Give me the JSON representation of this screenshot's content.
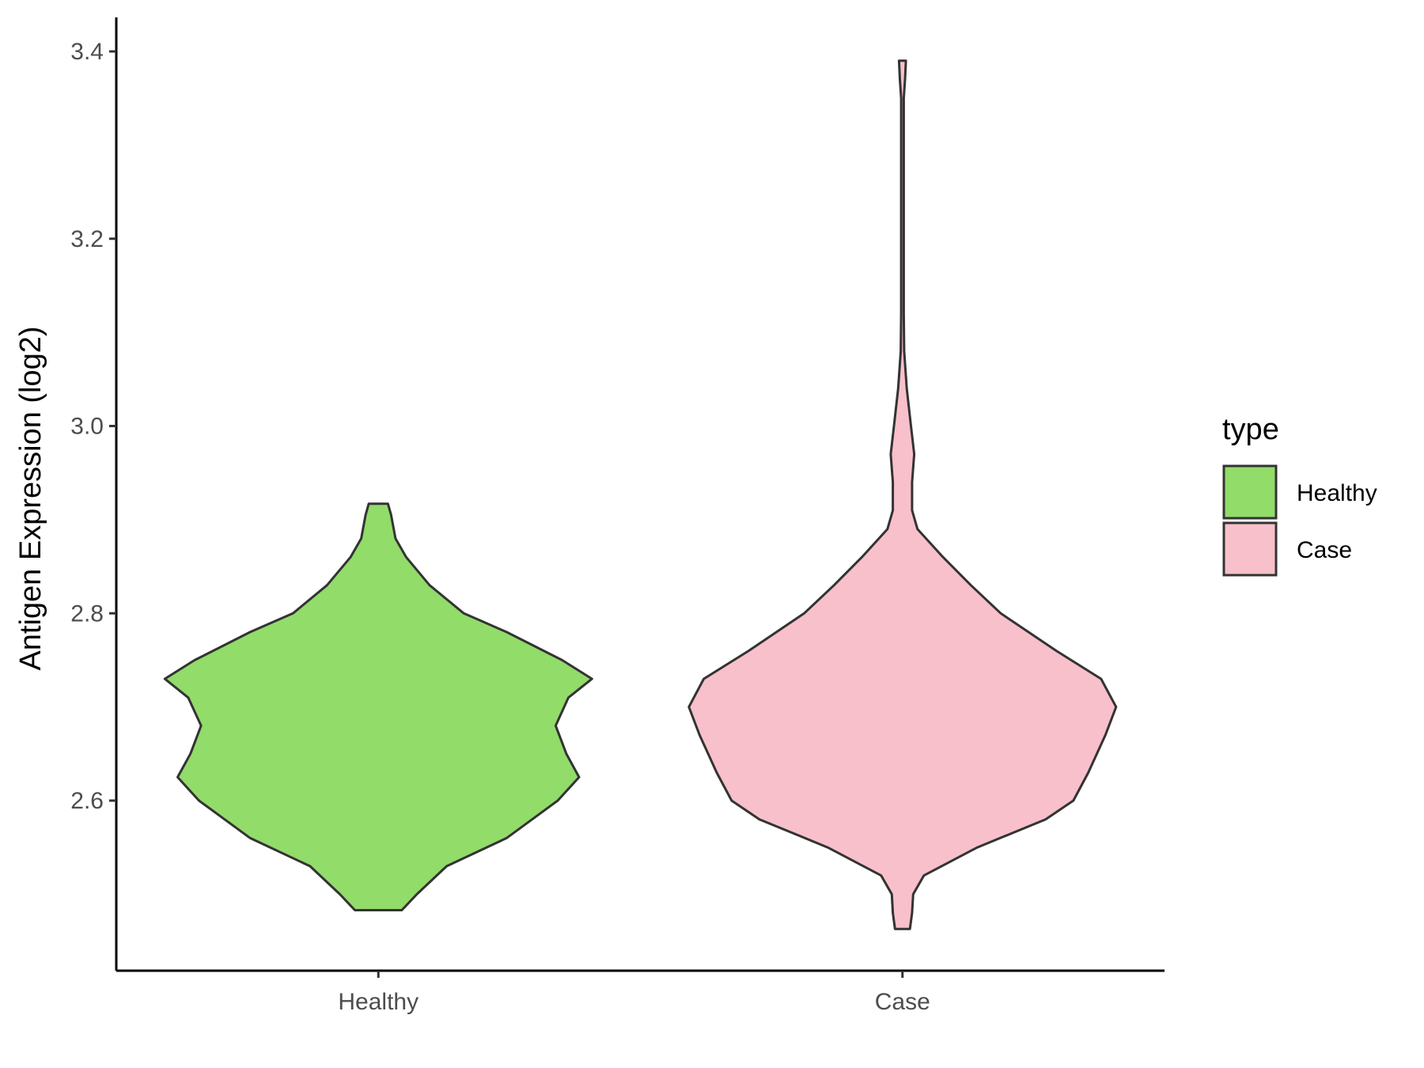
{
  "chart_data": {
    "type": "violin",
    "ylabel": "Antigen Expression (log2)",
    "xlabel": "",
    "categories": [
      "Healthy",
      "Case"
    ],
    "ylim": [
      2.43,
      3.44
    ],
    "yticks": [
      2.6,
      2.8,
      3.0,
      3.2,
      3.4
    ],
    "ytick_labels": [
      "2.6",
      "2.8",
      "3.0",
      "3.2",
      "3.4"
    ],
    "grid": false,
    "legend": {
      "title": "type",
      "placement": "right",
      "entries": [
        {
          "label": "Healthy",
          "color": "#92dc6a"
        },
        {
          "label": "Case",
          "color": "#f8c0cb"
        }
      ]
    },
    "series": [
      {
        "category": "Healthy",
        "color": "#92dc6a",
        "min": 2.483,
        "max": 2.917,
        "density_profile": [
          [
            2.483,
            0.11
          ],
          [
            2.5,
            0.18
          ],
          [
            2.53,
            0.32
          ],
          [
            2.56,
            0.6
          ],
          [
            2.6,
            0.84
          ],
          [
            2.625,
            0.94
          ],
          [
            2.65,
            0.88
          ],
          [
            2.68,
            0.83
          ],
          [
            2.71,
            0.89
          ],
          [
            2.73,
            1.0
          ],
          [
            2.75,
            0.86
          ],
          [
            2.78,
            0.6
          ],
          [
            2.8,
            0.4
          ],
          [
            2.83,
            0.24
          ],
          [
            2.86,
            0.13
          ],
          [
            2.88,
            0.08
          ],
          [
            2.905,
            0.06
          ],
          [
            2.917,
            0.045
          ]
        ]
      },
      {
        "category": "Case",
        "color": "#f8c0cb",
        "min": 2.463,
        "max": 3.39,
        "density_profile": [
          [
            2.463,
            0.035
          ],
          [
            2.48,
            0.045
          ],
          [
            2.5,
            0.05
          ],
          [
            2.52,
            0.1
          ],
          [
            2.55,
            0.35
          ],
          [
            2.58,
            0.67
          ],
          [
            2.6,
            0.8
          ],
          [
            2.63,
            0.87
          ],
          [
            2.67,
            0.95
          ],
          [
            2.7,
            1.0
          ],
          [
            2.73,
            0.93
          ],
          [
            2.76,
            0.72
          ],
          [
            2.8,
            0.46
          ],
          [
            2.83,
            0.32
          ],
          [
            2.86,
            0.19
          ],
          [
            2.89,
            0.07
          ],
          [
            2.91,
            0.045
          ],
          [
            2.94,
            0.045
          ],
          [
            2.97,
            0.055
          ],
          [
            3.0,
            0.04
          ],
          [
            3.04,
            0.02
          ],
          [
            3.08,
            0.008
          ],
          [
            3.12,
            0.006
          ],
          [
            3.3,
            0.006
          ],
          [
            3.35,
            0.006
          ],
          [
            3.37,
            0.012
          ],
          [
            3.39,
            0.016
          ]
        ]
      }
    ]
  }
}
